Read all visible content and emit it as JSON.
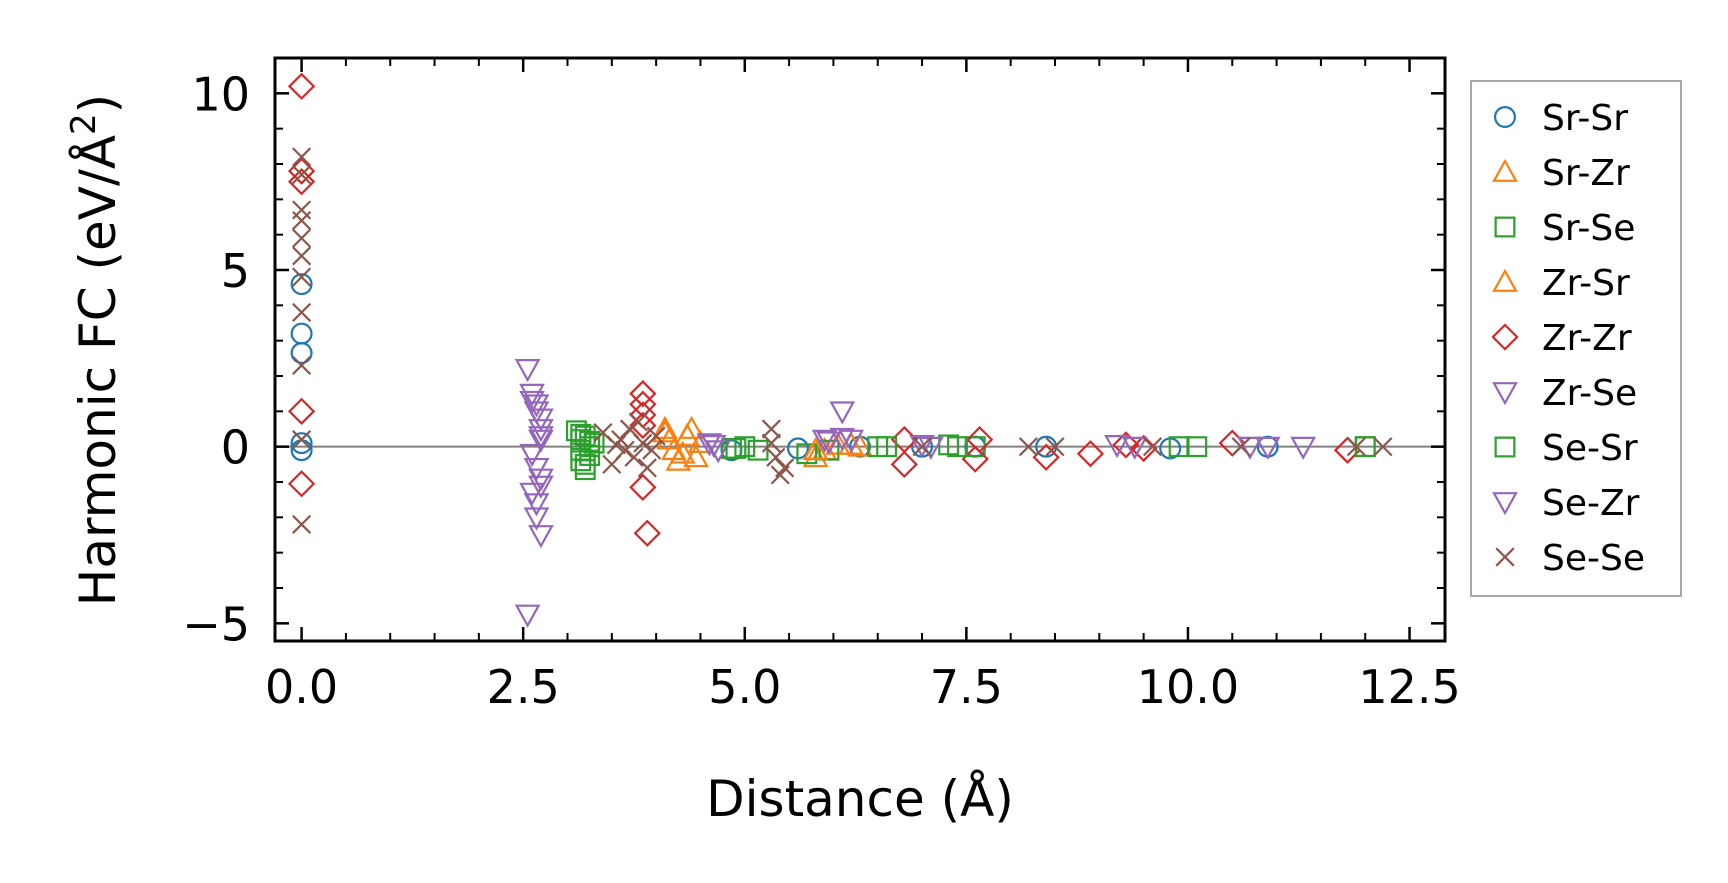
{
  "chart_data": {
    "type": "scatter",
    "title": "",
    "xlabel": "Distance (Å)",
    "ylabel": "Harmonic FC (eV/Å",
    "ylabel_sup": "2",
    "ylabel_close": ")",
    "xlim": [
      -0.3,
      12.9
    ],
    "ylim": [
      -5.5,
      11.0
    ],
    "xticks": [
      0.0,
      2.5,
      5.0,
      7.5,
      10.0,
      12.5
    ],
    "xtick_labels": [
      "0.0",
      "2.5",
      "5.0",
      "7.5",
      "10.0",
      "12.5"
    ],
    "yticks": [
      -5,
      0,
      5,
      10
    ],
    "ytick_labels": [
      "−5",
      "0",
      "5",
      "10"
    ],
    "hline": 0,
    "legend_position": "outside-right",
    "series": [
      {
        "name": "Sr-Sr",
        "marker": "circle",
        "color": "#1f77b4",
        "points": [
          [
            0,
            4.6
          ],
          [
            0,
            3.2
          ],
          [
            0,
            2.65
          ],
          [
            0,
            0.1
          ],
          [
            0,
            -0.1
          ],
          [
            4.85,
            -0.1
          ],
          [
            5.6,
            -0.05
          ],
          [
            6.3,
            0
          ],
          [
            7.0,
            0
          ],
          [
            7.6,
            0
          ],
          [
            8.4,
            0
          ],
          [
            9.8,
            -0.05
          ],
          [
            10.9,
            0
          ]
        ]
      },
      {
        "name": "Sr-Zr",
        "marker": "triangle-up",
        "color": "#ff7f0e",
        "points": [
          [
            4.1,
            0.5
          ],
          [
            4.15,
            0.2
          ],
          [
            4.2,
            -0.1
          ],
          [
            4.25,
            -0.4
          ],
          [
            4.4,
            0.5
          ],
          [
            4.45,
            -0.3
          ],
          [
            4.5,
            0.1
          ],
          [
            5.8,
            -0.3
          ],
          [
            5.9,
            -0.1
          ],
          [
            6.05,
            0.05
          ],
          [
            6.3,
            0
          ]
        ]
      },
      {
        "name": "Sr-Se",
        "marker": "square",
        "color": "#2ca02c",
        "points": [
          [
            3.1,
            0.45
          ],
          [
            3.15,
            0.2
          ],
          [
            3.15,
            -0.1
          ],
          [
            3.15,
            -0.4
          ],
          [
            3.2,
            -0.65
          ],
          [
            3.2,
            0.3
          ],
          [
            3.25,
            0
          ],
          [
            3.25,
            -0.25
          ],
          [
            3.3,
            0.1
          ],
          [
            4.85,
            -0.05
          ],
          [
            5.0,
            0
          ],
          [
            5.15,
            -0.1
          ],
          [
            5.7,
            -0.2
          ],
          [
            5.95,
            -0.1
          ],
          [
            6.5,
            0
          ],
          [
            7.3,
            0.05
          ],
          [
            7.6,
            0
          ],
          [
            10.1,
            0
          ],
          [
            12.0,
            0
          ]
        ]
      },
      {
        "name": "Zr-Sr",
        "marker": "triangle-up",
        "color": "#ff7f0e",
        "points": [
          [
            4.1,
            0.4
          ],
          [
            4.3,
            -0.2
          ],
          [
            4.35,
            0.3
          ],
          [
            5.8,
            -0.1
          ],
          [
            6.2,
            0.05
          ]
        ]
      },
      {
        "name": "Zr-Zr",
        "marker": "diamond",
        "color": "#d62728",
        "points": [
          [
            0,
            10.2
          ],
          [
            0,
            7.8
          ],
          [
            0,
            7.5
          ],
          [
            0,
            1.0
          ],
          [
            0,
            -1.05
          ],
          [
            3.85,
            1.5
          ],
          [
            3.85,
            1.2
          ],
          [
            3.85,
            0.9
          ],
          [
            3.85,
            0.6
          ],
          [
            3.85,
            -1.15
          ],
          [
            3.9,
            -2.45
          ],
          [
            6.8,
            0.2
          ],
          [
            6.8,
            -0.5
          ],
          [
            7.6,
            -0.35
          ],
          [
            7.65,
            0.2
          ],
          [
            8.4,
            -0.3
          ],
          [
            8.9,
            -0.2
          ],
          [
            9.3,
            0.05
          ],
          [
            9.5,
            -0.05
          ],
          [
            10.5,
            0.1
          ],
          [
            11.8,
            -0.1
          ]
        ]
      },
      {
        "name": "Zr-Se",
        "marker": "triangle-down",
        "color": "#9467bd",
        "points": [
          [
            2.55,
            2.2
          ],
          [
            2.6,
            1.5
          ],
          [
            2.65,
            1.2
          ],
          [
            2.65,
            1.0
          ],
          [
            2.7,
            0.8
          ],
          [
            2.7,
            0.5
          ],
          [
            2.7,
            0.2
          ],
          [
            2.6,
            -0.2
          ],
          [
            2.65,
            -0.6
          ],
          [
            2.7,
            -0.9
          ],
          [
            2.6,
            -1.3
          ],
          [
            2.65,
            -1.6
          ],
          [
            2.65,
            -2.0
          ],
          [
            2.7,
            -2.5
          ],
          [
            2.55,
            -4.75
          ],
          [
            4.6,
            0.1
          ],
          [
            4.7,
            -0.1
          ],
          [
            5.9,
            0.2
          ],
          [
            6.1,
            1.0
          ],
          [
            6.2,
            0.2
          ],
          [
            7.0,
            0.05
          ],
          [
            9.2,
            0.05
          ],
          [
            10.9,
            0
          ],
          [
            11.3,
            0
          ]
        ]
      },
      {
        "name": "Se-Sr",
        "marker": "square",
        "color": "#2ca02c",
        "points": [
          [
            3.15,
            0.35
          ],
          [
            3.2,
            -0.5
          ],
          [
            3.25,
            0.15
          ],
          [
            4.9,
            -0.05
          ],
          [
            6.6,
            0
          ],
          [
            7.4,
            0
          ],
          [
            9.9,
            0
          ],
          [
            12.0,
            0
          ]
        ]
      },
      {
        "name": "Se-Zr",
        "marker": "triangle-down",
        "color": "#9467bd",
        "points": [
          [
            2.6,
            1.3
          ],
          [
            2.7,
            -1.1
          ],
          [
            2.7,
            0.3
          ],
          [
            4.65,
            0.05
          ],
          [
            5.95,
            0.15
          ],
          [
            6.1,
            0.25
          ],
          [
            7.1,
            0
          ],
          [
            9.4,
            0
          ],
          [
            10.7,
            0
          ]
        ]
      },
      {
        "name": "Se-Se",
        "marker": "x",
        "color": "#8c564b",
        "points": [
          [
            0,
            8.2
          ],
          [
            0,
            7.7
          ],
          [
            0,
            6.7
          ],
          [
            0,
            6.4
          ],
          [
            0,
            5.9
          ],
          [
            0,
            5.4
          ],
          [
            0,
            4.8
          ],
          [
            0,
            3.8
          ],
          [
            0,
            2.3
          ],
          [
            0,
            0.2
          ],
          [
            0,
            -2.2
          ],
          [
            3.4,
            0.4
          ],
          [
            3.5,
            -0.5
          ],
          [
            3.6,
            0.2
          ],
          [
            3.7,
            0.5
          ],
          [
            3.75,
            -0.3
          ],
          [
            3.8,
            0.7
          ],
          [
            3.85,
            0.1
          ],
          [
            3.9,
            -0.6
          ],
          [
            3.95,
            -0.1
          ],
          [
            4.0,
            0.3
          ],
          [
            3.65,
            -0.1
          ],
          [
            3.55,
            0.05
          ],
          [
            5.3,
            0.5
          ],
          [
            5.35,
            -0.3
          ],
          [
            5.4,
            -0.8
          ],
          [
            5.45,
            -0.6
          ],
          [
            5.3,
            0.1
          ],
          [
            7.0,
            0
          ],
          [
            8.2,
            0
          ],
          [
            8.5,
            0
          ],
          [
            9.6,
            0
          ],
          [
            10.6,
            0
          ],
          [
            11.9,
            0
          ],
          [
            12.2,
            0
          ]
        ]
      }
    ]
  }
}
